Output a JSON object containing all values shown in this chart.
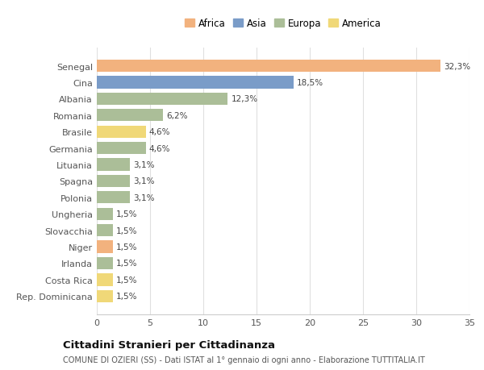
{
  "categories": [
    "Senegal",
    "Cina",
    "Albania",
    "Romania",
    "Brasile",
    "Germania",
    "Lituania",
    "Spagna",
    "Polonia",
    "Ungheria",
    "Slovacchia",
    "Niger",
    "Irlanda",
    "Costa Rica",
    "Rep. Dominicana"
  ],
  "values": [
    32.3,
    18.5,
    12.3,
    6.2,
    4.6,
    4.6,
    3.1,
    3.1,
    3.1,
    1.5,
    1.5,
    1.5,
    1.5,
    1.5,
    1.5
  ],
  "labels": [
    "32,3%",
    "18,5%",
    "12,3%",
    "6,2%",
    "4,6%",
    "4,6%",
    "3,1%",
    "3,1%",
    "3,1%",
    "1,5%",
    "1,5%",
    "1,5%",
    "1,5%",
    "1,5%",
    "1,5%"
  ],
  "continents": [
    "Africa",
    "Asia",
    "Europa",
    "Europa",
    "America",
    "Europa",
    "Europa",
    "Europa",
    "Europa",
    "Europa",
    "Europa",
    "Africa",
    "Europa",
    "America",
    "America"
  ],
  "colors": {
    "Africa": "#F2B27E",
    "Asia": "#7A9CC8",
    "Europa": "#ABBE98",
    "America": "#F0D878"
  },
  "legend_order": [
    "Africa",
    "Asia",
    "Europa",
    "America"
  ],
  "title": "Cittadini Stranieri per Cittadinanza",
  "subtitle": "COMUNE DI OZIERI (SS) - Dati ISTAT al 1° gennaio di ogni anno - Elaborazione TUTTITALIA.IT",
  "xlim": [
    0,
    35
  ],
  "xticks": [
    0,
    5,
    10,
    15,
    20,
    25,
    30,
    35
  ],
  "background_color": "#ffffff",
  "grid_color": "#e0e0e0"
}
